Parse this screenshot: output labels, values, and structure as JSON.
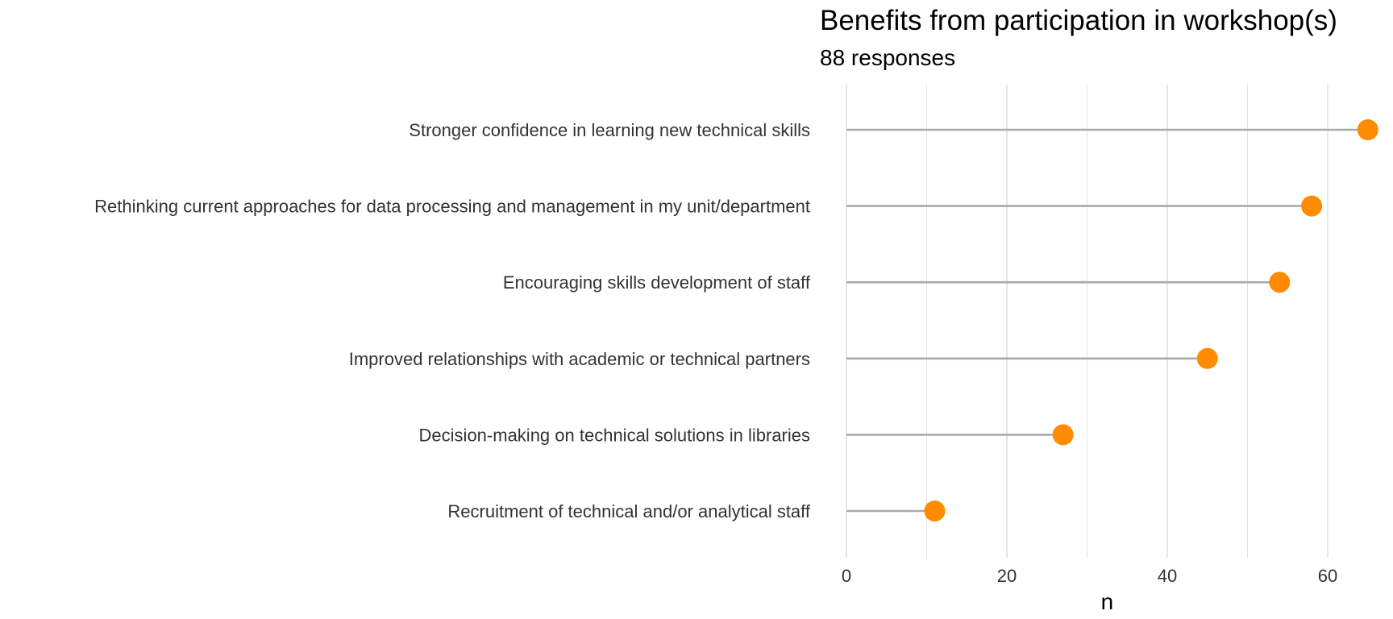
{
  "chart_data": {
    "type": "lollipop",
    "title": "Benefits from participation in workshop(s)",
    "subtitle": "88 responses",
    "xlabel": "n",
    "ylabel": "",
    "xlim": [
      0,
      65
    ],
    "xticks": [
      0,
      20,
      40,
      60
    ],
    "grid": true,
    "categories": [
      "Stronger confidence in learning new technical skills",
      "Rethinking current approaches for data processing and management in my unit/department",
      "Encouraging skills development of staff",
      "Improved relationships with academic or technical partners",
      "Decision-making on technical solutions in libraries",
      "Recruitment of technical and/or analytical staff"
    ],
    "values": [
      65,
      58,
      54,
      45,
      27,
      11
    ],
    "colors": {
      "point": "#FF8C00",
      "stem": "#AAAAAA",
      "grid": "#DDDDDD"
    }
  }
}
